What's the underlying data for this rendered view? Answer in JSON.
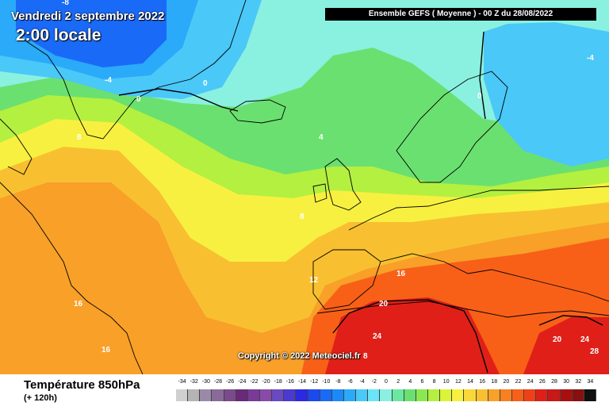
{
  "map": {
    "date_line": "Vendredi 2 septembre 2022",
    "time_line": "2:00 locale",
    "run_info": "Ensemble GEFS  ( Moyenne )  -  00 Z du 28/08/2022",
    "copyright": "Copyright © 2022 Meteociel.fr",
    "variable_title": "Température 850hPa",
    "lead_time": "(+ 120h)",
    "isotherm_labels": [
      "-8",
      "-4",
      "0",
      "0",
      "0",
      "-4",
      "4",
      "8",
      "8",
      "12",
      "16",
      "16",
      "16",
      "20",
      "24",
      "20",
      "24",
      "28",
      "8"
    ]
  },
  "legend": {
    "labels": [
      "-34",
      "-32",
      "-30",
      "-28",
      "-26",
      "-24",
      "-22",
      "-20",
      "-18",
      "-16",
      "-14",
      "-12",
      "-10",
      "-8",
      "-6",
      "-4",
      "-2",
      "0",
      "2",
      "4",
      "6",
      "8",
      "10",
      "12",
      "14",
      "16",
      "18",
      "20",
      "22",
      "24",
      "26",
      "28",
      "30",
      "32",
      "34"
    ],
    "colors": [
      "#d0d0d0",
      "#b4b4b4",
      "#9a8aa8",
      "#8a6a9a",
      "#7a4a8a",
      "#6a2a7a",
      "#7a3a9a",
      "#8a4aaa",
      "#6a4ac0",
      "#4a3ad0",
      "#2a2ae0",
      "#1a4af0",
      "#1a6af8",
      "#1a8af8",
      "#2aaaf8",
      "#4ac8f8",
      "#6ae4f8",
      "#8af0e0",
      "#6ae8a0",
      "#6ae070",
      "#8ae850",
      "#b4f040",
      "#dcf438",
      "#f8f040",
      "#f8d838",
      "#f8c030",
      "#f8a028",
      "#f88020",
      "#f86018",
      "#f04018",
      "#e02018",
      "#c81818",
      "#a81010",
      "#881010",
      "#101010"
    ],
    "palette": {
      "ocean_cold": "#1a6af8",
      "cold": "#4ac8f8",
      "cool": "#6ae4f8",
      "mild": "#6ae070",
      "warm": "#f8f040",
      "hot": "#f8a028",
      "very_hot": "#e02018"
    }
  }
}
